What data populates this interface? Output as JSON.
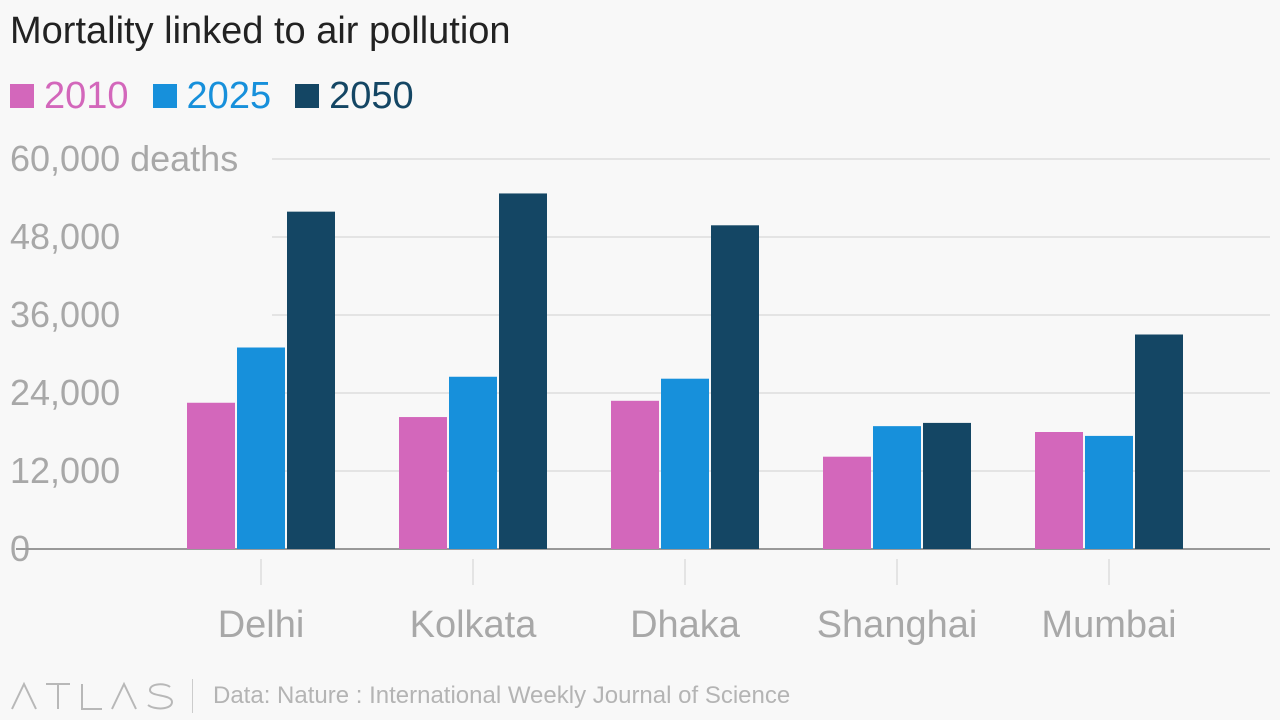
{
  "title": "Mortality linked to air pollution",
  "legend": [
    {
      "label": "2010",
      "color": "#d367bb"
    },
    {
      "label": "2025",
      "color": "#1790db"
    },
    {
      "label": "2050",
      "color": "#144664"
    }
  ],
  "footer": {
    "logo": "ATLAS",
    "source": "Data: Nature : International Weekly Journal of Science"
  },
  "colors": {
    "background": "#f8f8f8",
    "gridline": "#e4e4e4",
    "baseline": "#999999",
    "axis_label": "#a8a8a8",
    "category_label": "#a8a8a8"
  },
  "chart_data": {
    "type": "bar",
    "title": "Mortality linked to air pollution",
    "categories": [
      "Delhi",
      "Kolkata",
      "Dhaka",
      "Shanghai",
      "Mumbai"
    ],
    "series": [
      {
        "name": "2010",
        "values": [
          22500,
          20300,
          22800,
          14200,
          18000
        ]
      },
      {
        "name": "2025",
        "values": [
          31000,
          26500,
          26200,
          18900,
          17400
        ]
      },
      {
        "name": "2050",
        "values": [
          51900,
          54700,
          49800,
          19400,
          33000
        ]
      }
    ],
    "y_ticks": [
      0,
      12000,
      24000,
      36000,
      48000,
      60000
    ],
    "y_tick_labels": [
      "0",
      "12,000",
      "24,000",
      "36,000",
      "48,000",
      "60,000 deaths"
    ],
    "ylim": [
      0,
      60000
    ],
    "grid": true,
    "legend_position": "top-left"
  }
}
